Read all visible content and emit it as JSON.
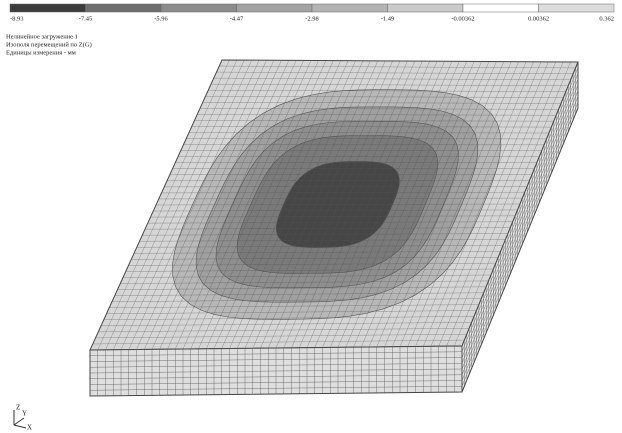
{
  "legend": {
    "labels": [
      "-8.93",
      "-7.45",
      "-5.96",
      "-4.47",
      "-2.98",
      "-1.49",
      "-0.00362",
      "0.00362",
      "0.362"
    ],
    "colors": [
      "#3c3c3c",
      "#6e6e6e",
      "#8c8c8c",
      "#a2a2a2",
      "#b4b4b4",
      "#cacaca",
      "#ffffff",
      "#dcdcdc"
    ]
  },
  "info": {
    "lines": [
      "Нелинейное загружение 1",
      "Изополя перемещений по Z(G)",
      "Единицы измерения - мм"
    ]
  },
  "axes": {
    "z": "Z",
    "y": "Y",
    "x": "X"
  }
}
